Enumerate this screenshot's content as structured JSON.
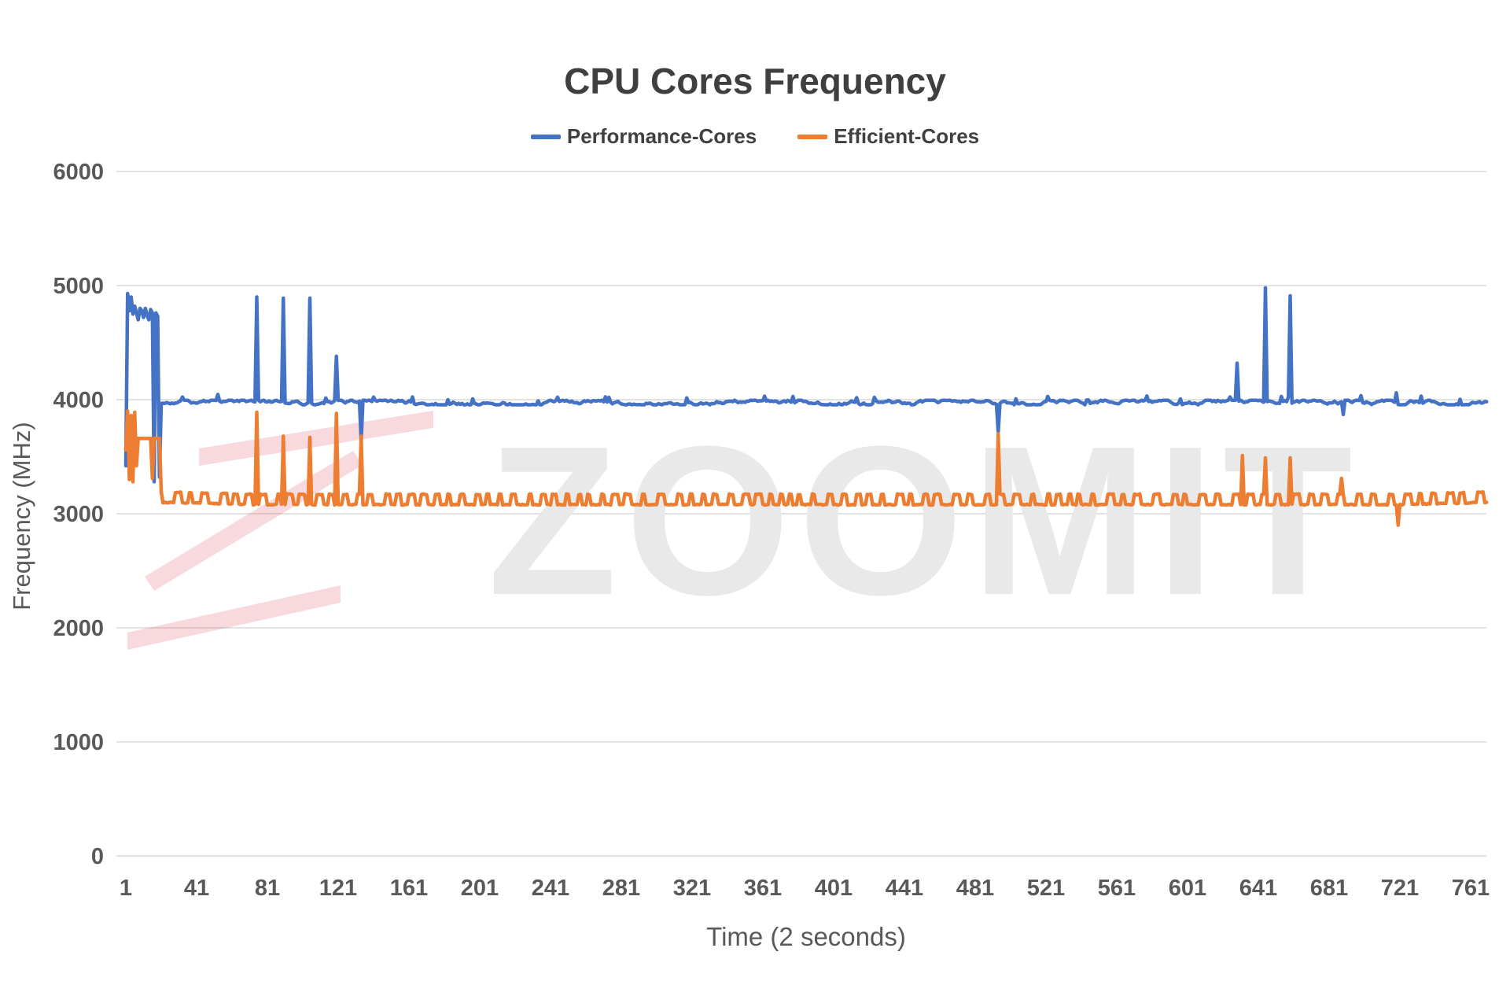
{
  "title": "CPU Cores Frequency",
  "legend": [
    {
      "label": "Performance-Cores",
      "color": "#4472C4"
    },
    {
      "label": "Efficient-Cores",
      "color": "#ED7D31"
    }
  ],
  "watermark": {
    "text": "ZOOMIT",
    "text_color": "#e9e9e9",
    "logo_color_rgba": "rgba(210,30,60,0.17)"
  },
  "axes": {
    "xlabel": "Time (2 seconds)",
    "ylabel": "Frequency (MHz)"
  },
  "chart_data": {
    "type": "line",
    "title": "CPU Cores Frequency",
    "xlabel": "Time (2 seconds)",
    "ylabel": "Frequency (MHz)",
    "xlim": [
      1,
      770
    ],
    "ylim": [
      0,
      6000
    ],
    "x_ticks": [
      1,
      41,
      81,
      121,
      161,
      201,
      241,
      281,
      321,
      361,
      401,
      441,
      481,
      521,
      561,
      601,
      641,
      681,
      721,
      761
    ],
    "y_ticks": [
      0,
      1000,
      2000,
      3000,
      4000,
      5000,
      6000
    ],
    "grid": true,
    "legend_position": "top-center",
    "gridline_color": "#d9d9d9",
    "series": [
      {
        "name": "Performance-Cores",
        "color": "#4472C4",
        "baseline": 3975,
        "seed": 11,
        "noise": {
          "type": "smooth",
          "amplitude": 20,
          "step": 28,
          "bump": 55,
          "bump_chance": 0.028
        },
        "anchors": [
          [
            1,
            3420
          ],
          [
            2,
            4930
          ],
          [
            3,
            4780
          ],
          [
            4,
            4900
          ],
          [
            5,
            4750
          ],
          [
            6,
            4820
          ],
          [
            7,
            4760
          ],
          [
            8,
            4700
          ],
          [
            9,
            4800
          ],
          [
            10,
            4780
          ],
          [
            11,
            4720
          ],
          [
            12,
            4800
          ],
          [
            13,
            4740
          ],
          [
            14,
            4700
          ],
          [
            15,
            4790
          ],
          [
            16,
            4760
          ],
          [
            17,
            3280
          ],
          [
            18,
            4760
          ],
          [
            19,
            4730
          ],
          [
            20,
            3320
          ],
          [
            21,
            3975
          ],
          [
            74,
            3975
          ],
          [
            75,
            4900
          ],
          [
            76,
            3975
          ],
          [
            89,
            3975
          ],
          [
            90,
            4890
          ],
          [
            91,
            3975
          ],
          [
            104,
            3975
          ],
          [
            105,
            4890
          ],
          [
            106,
            3975
          ],
          [
            119,
            3975
          ],
          [
            120,
            4380
          ],
          [
            121,
            3975
          ],
          [
            133,
            3975
          ],
          [
            134,
            3640
          ],
          [
            135,
            3975
          ],
          [
            493,
            3975
          ],
          [
            494,
            3720
          ],
          [
            495,
            3975
          ],
          [
            628,
            3975
          ],
          [
            629,
            4320
          ],
          [
            630,
            3975
          ],
          [
            644,
            3975
          ],
          [
            645,
            4980
          ],
          [
            646,
            3975
          ],
          [
            658,
            3975
          ],
          [
            659,
            4910
          ],
          [
            660,
            3975
          ],
          [
            688,
            3975
          ],
          [
            689,
            3870
          ],
          [
            690,
            3975
          ],
          [
            718,
            3975
          ],
          [
            719,
            4060
          ],
          [
            720,
            3975
          ],
          [
            770,
            3975
          ]
        ]
      },
      {
        "name": "Efficient-Cores",
        "color": "#ED7D31",
        "baseline": 3080,
        "seed": 23,
        "noise": {
          "type": "pulse",
          "high": 90,
          "low_len": [
            3,
            7
          ],
          "high_len": [
            2,
            4
          ],
          "jitter": 8
        },
        "anchors": [
          [
            1,
            3560
          ],
          [
            2,
            3900
          ],
          [
            3,
            3300
          ],
          [
            4,
            3860
          ],
          [
            5,
            3280
          ],
          [
            6,
            3890
          ],
          [
            7,
            3420
          ],
          [
            8,
            3660
          ],
          [
            15,
            3660
          ],
          [
            16,
            3310
          ],
          [
            17,
            3660
          ],
          [
            20,
            3660
          ],
          [
            21,
            3100
          ],
          [
            74,
            3080
          ],
          [
            75,
            3890
          ],
          [
            76,
            3080
          ],
          [
            89,
            3080
          ],
          [
            90,
            3680
          ],
          [
            91,
            3080
          ],
          [
            104,
            3080
          ],
          [
            105,
            3670
          ],
          [
            106,
            3080
          ],
          [
            119,
            3080
          ],
          [
            120,
            3880
          ],
          [
            121,
            3080
          ],
          [
            133,
            3080
          ],
          [
            134,
            3680
          ],
          [
            135,
            3080
          ],
          [
            493,
            3080
          ],
          [
            494,
            3700
          ],
          [
            495,
            3080
          ],
          [
            631,
            3080
          ],
          [
            632,
            3510
          ],
          [
            633,
            3080
          ],
          [
            644,
            3080
          ],
          [
            645,
            3490
          ],
          [
            646,
            3080
          ],
          [
            658,
            3080
          ],
          [
            659,
            3490
          ],
          [
            660,
            3080
          ],
          [
            687,
            3080
          ],
          [
            688,
            3310
          ],
          [
            689,
            3080
          ],
          [
            719,
            3080
          ],
          [
            720,
            2900
          ],
          [
            721,
            3080
          ],
          [
            770,
            3100
          ]
        ]
      }
    ]
  }
}
